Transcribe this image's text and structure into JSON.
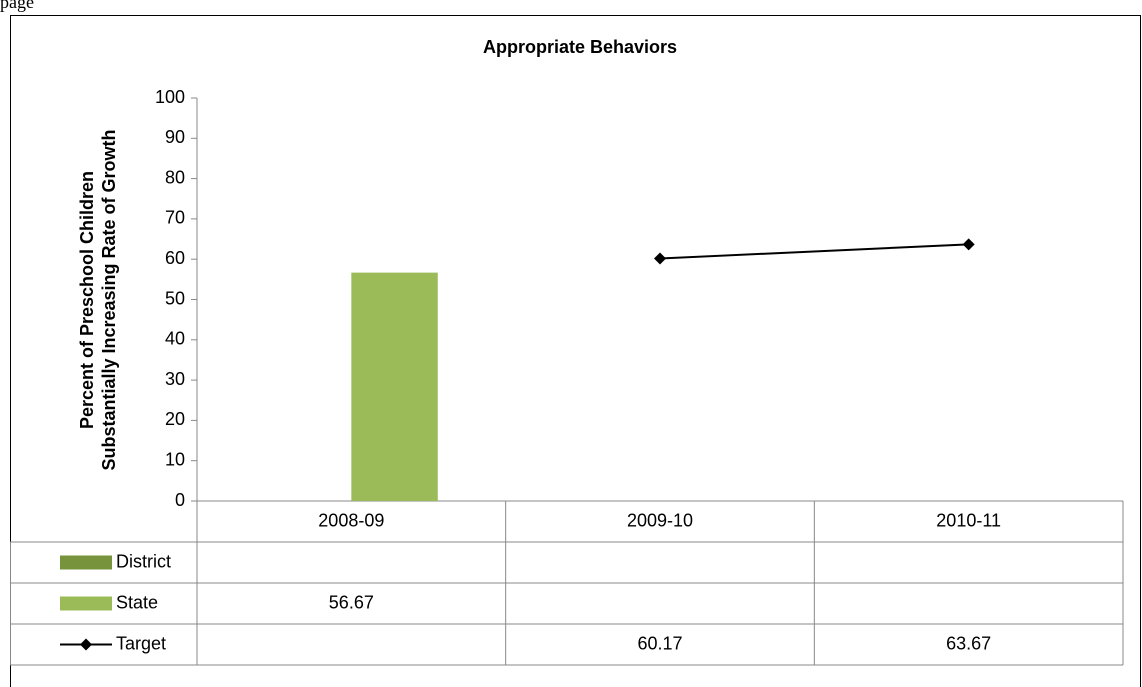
{
  "page_fragment": "page",
  "chart_data": {
    "type": "bar-line",
    "title": "Appropriate Behaviors",
    "y_label": [
      "Percent of Preschool Children",
      "Substantially Increasing Rate of Growth"
    ],
    "categories": [
      "2008-09",
      "2009-10",
      "2010-11"
    ],
    "series": [
      {
        "name": "District",
        "type": "bar",
        "color": "#77933c",
        "values": [
          null,
          null,
          null
        ]
      },
      {
        "name": "State",
        "type": "bar",
        "color": "#9bbb59",
        "values": [
          56.67,
          null,
          null
        ]
      },
      {
        "name": "Target",
        "type": "line",
        "color": "#000000",
        "values": [
          null,
          60.17,
          63.67
        ]
      }
    ],
    "ylim": [
      0,
      100
    ],
    "yticks": [
      0,
      10,
      20,
      30,
      40,
      50,
      60,
      70,
      80,
      90,
      100
    ],
    "grid": false,
    "legend": "data-table"
  }
}
